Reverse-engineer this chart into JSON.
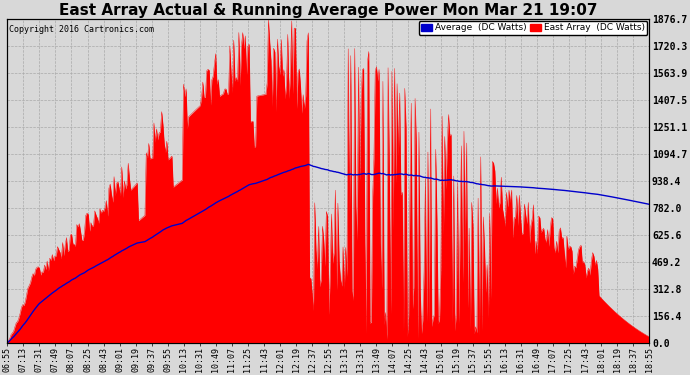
{
  "title": "East Array Actual & Running Average Power Mon Mar 21 19:07",
  "copyright": "Copyright 2016 Cartronics.com",
  "ylabel_right_ticks": [
    0.0,
    156.4,
    312.8,
    469.2,
    625.6,
    782.0,
    938.4,
    1094.7,
    1251.1,
    1407.5,
    1563.9,
    1720.3,
    1876.7
  ],
  "ymax": 1876.7,
  "ymin": 0.0,
  "background_color": "#d8d8d8",
  "plot_background": "#d8d8d8",
  "bar_color": "#ff0000",
  "avg_line_color": "#0000cc",
  "title_fontsize": 11,
  "legend_avg_label": "Average  (DC Watts)",
  "legend_east_label": "East Array  (DC Watts)",
  "x_tick_labels": [
    "06:55",
    "07:13",
    "07:31",
    "07:49",
    "08:07",
    "08:25",
    "08:43",
    "09:01",
    "09:19",
    "09:37",
    "09:55",
    "10:13",
    "10:31",
    "10:49",
    "11:07",
    "11:25",
    "11:43",
    "12:01",
    "12:19",
    "12:37",
    "12:55",
    "13:13",
    "13:31",
    "13:49",
    "14:07",
    "14:25",
    "14:43",
    "15:01",
    "15:19",
    "15:37",
    "15:55",
    "16:13",
    "16:31",
    "16:49",
    "17:07",
    "17:25",
    "17:43",
    "18:01",
    "18:19",
    "18:37",
    "18:55"
  ],
  "n_dense": 500
}
